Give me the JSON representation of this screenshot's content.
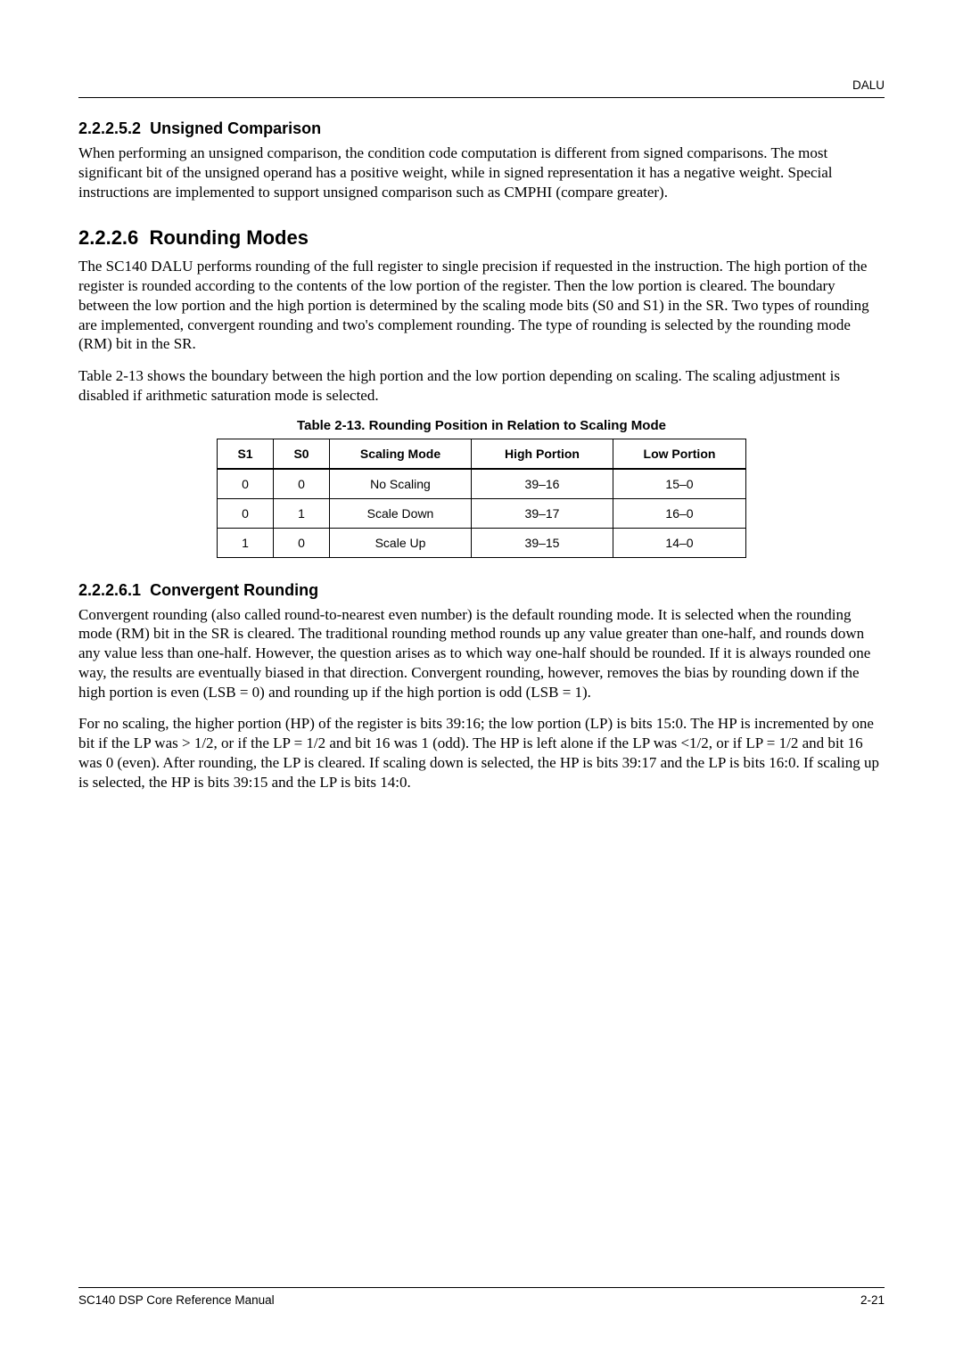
{
  "running_head": "DALU",
  "sections": {
    "s1": {
      "number": "2.2.2.5.2",
      "title": "Unsigned Comparison",
      "para": "When performing an unsigned comparison, the condition code computation is different from signed comparisons. The most significant bit of the unsigned operand has a positive weight, while in signed representation it has a negative weight. Special instructions are implemented to support unsigned comparison such as CMPHI (compare greater)."
    },
    "s2": {
      "number": "2.2.2.6",
      "title": "Rounding Modes",
      "para1": "The SC140 DALU performs rounding of the full register to single precision if requested in the instruction. The high portion of the register is rounded according to the contents of the low portion of the register. Then the low portion is cleared. The boundary between the low portion and the high portion is determined by the scaling mode bits (S0 and S1) in the SR. Two types of rounding are implemented, convergent rounding and two's complement rounding. The type of rounding is selected by the rounding mode (RM) bit in the SR.",
      "para2": "Table 2-13 shows the boundary between the high portion and the low portion depending on scaling. The scaling adjustment is disabled if arithmetic saturation mode is selected."
    },
    "s3": {
      "number": "2.2.2.6.1",
      "title": "Convergent Rounding",
      "para1": "Convergent rounding (also called round-to-nearest even number) is the default rounding mode. It is selected when the rounding mode (RM) bit in the SR is cleared. The traditional rounding method rounds up any value greater than one-half, and rounds down any value less than one-half. However, the question arises as to which way one-half should be rounded. If it is always rounded one way, the results are eventually biased in that direction. Convergent rounding, however, removes the bias by rounding down if the high portion is even (LSB = 0) and rounding up if the high portion is odd (LSB = 1).",
      "para2": "For no scaling, the higher portion (HP) of the register is bits 39:16; the low portion (LP) is bits 15:0. The HP is incremented by one bit if the LP was > 1/2, or if the LP = 1/2 and bit 16 was 1 (odd). The HP is left alone if the LP was <1/2, or if LP = 1/2 and bit 16 was 0 (even). After rounding, the LP is cleared. If scaling down is selected, the HP is bits 39:17 and the LP is bits 16:0. If scaling up is selected, the HP is bits 39:15 and the LP is bits 14:0."
    }
  },
  "table": {
    "caption": "Table 2-13.   Rounding Position in Relation to Scaling Mode",
    "headers": [
      "S1",
      "S0",
      "Scaling Mode",
      "High Portion",
      "Low Portion"
    ],
    "rows": [
      [
        "0",
        "0",
        "No Scaling",
        "39–16",
        "15–0"
      ],
      [
        "0",
        "1",
        "Scale Down",
        "39–17",
        "16–0"
      ],
      [
        "1",
        "0",
        "Scale Up",
        "39–15",
        "14–0"
      ]
    ]
  },
  "footer": {
    "left": "SC140 DSP Core Reference Manual",
    "right": "2-21"
  }
}
